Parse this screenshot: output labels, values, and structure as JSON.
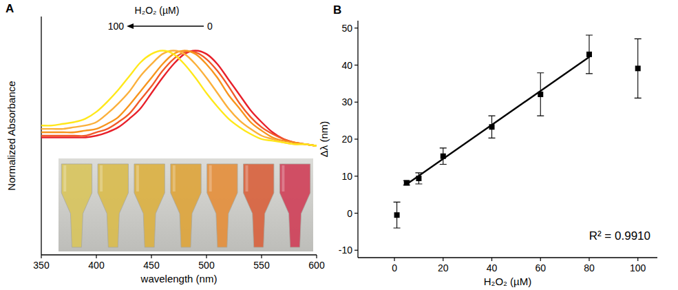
{
  "chart_data": [
    {
      "panel": "A",
      "type": "line",
      "xlabel": "wavelength (nm)",
      "ylabel": "Normalized Absorbance",
      "x": [
        350,
        360,
        370,
        380,
        390,
        400,
        410,
        420,
        430,
        440,
        450,
        460,
        470,
        480,
        490,
        500,
        510,
        520,
        530,
        540,
        550,
        560,
        570,
        580,
        590,
        600
      ],
      "series": [
        {
          "color": "#e8202a",
          "values": [
            0.49,
            0.49,
            0.49,
            0.49,
            0.49,
            0.5,
            0.52,
            0.55,
            0.6,
            0.66,
            0.75,
            0.84,
            0.92,
            0.98,
            1.0,
            0.98,
            0.92,
            0.83,
            0.74,
            0.65,
            0.58,
            0.52,
            0.48,
            0.46,
            0.45,
            0.44
          ]
        },
        {
          "color": "#f15a29",
          "values": [
            0.5,
            0.5,
            0.5,
            0.5,
            0.5,
            0.52,
            0.54,
            0.58,
            0.63,
            0.71,
            0.79,
            0.88,
            0.95,
            0.99,
            0.99,
            0.95,
            0.88,
            0.79,
            0.69,
            0.61,
            0.55,
            0.51,
            0.48,
            0.46,
            0.45,
            0.44
          ]
        },
        {
          "color": "#f7941d",
          "values": [
            0.52,
            0.52,
            0.52,
            0.52,
            0.53,
            0.54,
            0.57,
            0.61,
            0.68,
            0.76,
            0.84,
            0.92,
            0.98,
            1.0,
            0.98,
            0.92,
            0.84,
            0.74,
            0.66,
            0.58,
            0.53,
            0.49,
            0.47,
            0.46,
            0.45,
            0.44
          ]
        },
        {
          "color": "#fbb03b",
          "values": [
            0.54,
            0.54,
            0.54,
            0.55,
            0.56,
            0.58,
            0.63,
            0.69,
            0.76,
            0.85,
            0.92,
            0.98,
            1.0,
            0.98,
            0.92,
            0.84,
            0.75,
            0.66,
            0.59,
            0.54,
            0.5,
            0.48,
            0.46,
            0.45,
            0.45,
            0.44
          ]
        },
        {
          "color": "#ffe81a",
          "values": [
            0.56,
            0.56,
            0.57,
            0.58,
            0.6,
            0.64,
            0.7,
            0.77,
            0.85,
            0.93,
            0.98,
            1.0,
            0.98,
            0.92,
            0.84,
            0.75,
            0.67,
            0.6,
            0.55,
            0.51,
            0.48,
            0.47,
            0.46,
            0.45,
            0.45,
            0.44
          ]
        }
      ],
      "xlim": [
        350,
        600
      ],
      "xticks": [
        350,
        400,
        450,
        500,
        550,
        600
      ],
      "ylim": [
        -0.2,
        1.2
      ],
      "tick_labels": "x",
      "grid": false,
      "annotation": {
        "text": "H₂O₂ (µM)",
        "arrow_from": 0,
        "arrow_to": 100
      }
    },
    {
      "panel": "B",
      "type": "scatter",
      "xlabel": "H₂O₂ (µM)",
      "ylabel": "Δλ (nm)",
      "series": [
        {
          "type": "scatter",
          "marker": "square",
          "color": "#000000",
          "x": [
            1,
            5,
            10,
            20,
            40,
            60,
            80,
            100
          ],
          "values": [
            -0.5,
            8.2,
            9.4,
            15.4,
            23.3,
            32.1,
            42.9,
            39.1
          ],
          "errors": [
            3.5,
            0.6,
            1.5,
            2.2,
            3.0,
            5.8,
            5.2,
            8.0
          ]
        },
        {
          "type": "line",
          "line_style": "solid",
          "color": "#000000",
          "x": [
            5,
            80
          ],
          "values": [
            7.8,
            42.2
          ]
        }
      ],
      "xlim": [
        -15,
        108
      ],
      "xticks": [
        0,
        20,
        40,
        60,
        80,
        100
      ],
      "ylim": [
        -12,
        52
      ],
      "yticks": [
        -10,
        0,
        10,
        20,
        30,
        40,
        50
      ],
      "grid": false,
      "annotation": "R² = 0.9910"
    }
  ]
}
